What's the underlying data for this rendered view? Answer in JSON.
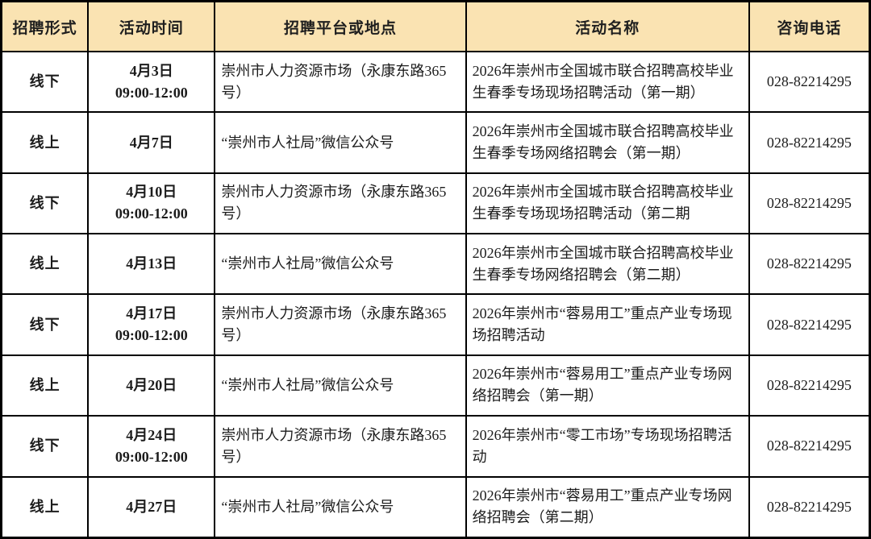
{
  "colors": {
    "header_bg": "#FAE3B2",
    "border": "#000000",
    "body_bg": "#FFFFFF",
    "text": "#1C1C1C"
  },
  "table": {
    "columns": [
      {
        "key": "form",
        "label": "招聘形式"
      },
      {
        "key": "time",
        "label": "活动时间"
      },
      {
        "key": "platform",
        "label": "招聘平台或地点"
      },
      {
        "key": "activity",
        "label": "活动名称"
      },
      {
        "key": "phone",
        "label": "咨询电话"
      }
    ],
    "rows": [
      {
        "form": "线下",
        "time": "4月3日\n09:00-12:00",
        "platform": "崇州市人力资源市场（永康东路365号）",
        "activity": "2026年崇州市全国城市联合招聘高校毕业生春季专场现场招聘活动（第一期）",
        "phone": "028-82214295"
      },
      {
        "form": "线上",
        "time": "4月7日",
        "platform": "“崇州市人社局”微信公众号",
        "activity": "2026年崇州市全国城市联合招聘高校毕业生春季专场网络招聘会（第一期）",
        "phone": "028-82214295"
      },
      {
        "form": "线下",
        "time": "4月10日\n09:00-12:00",
        "platform": "崇州市人力资源市场（永康东路365号）",
        "activity": "2026年崇州市全国城市联合招聘高校毕业生春季专场现场招聘活动（第二期",
        "phone": "028-82214295"
      },
      {
        "form": "线上",
        "time": "4月13日",
        "platform": "“崇州市人社局”微信公众号",
        "activity": "2026年崇州市全国城市联合招聘高校毕业生春季专场网络招聘会（第二期）",
        "phone": "028-82214295"
      },
      {
        "form": "线下",
        "time": "4月17日\n09:00-12:00",
        "platform": "崇州市人力资源市场（永康东路365号）",
        "activity": "2026年崇州市“蓉易用工”重点产业专场现场招聘活动",
        "phone": "028-82214295"
      },
      {
        "form": "线上",
        "time": "4月20日",
        "platform": "“崇州市人社局”微信公众号",
        "activity": "2026年崇州市“蓉易用工”重点产业专场网络招聘会（第一期）",
        "phone": "028-82214295"
      },
      {
        "form": "线下",
        "time": "4月24日\n09:00-12:00",
        "platform": "崇州市人力资源市场（永康东路365号）",
        "activity": "2026年崇州市“零工市场”专场现场招聘活动",
        "phone": "028-82214295"
      },
      {
        "form": "线上",
        "time": "4月27日",
        "platform": "“崇州市人社局”微信公众号",
        "activity": "2026年崇州市“蓉易用工”重点产业专场网络招聘会（第二期）",
        "phone": "028-82214295"
      }
    ]
  }
}
